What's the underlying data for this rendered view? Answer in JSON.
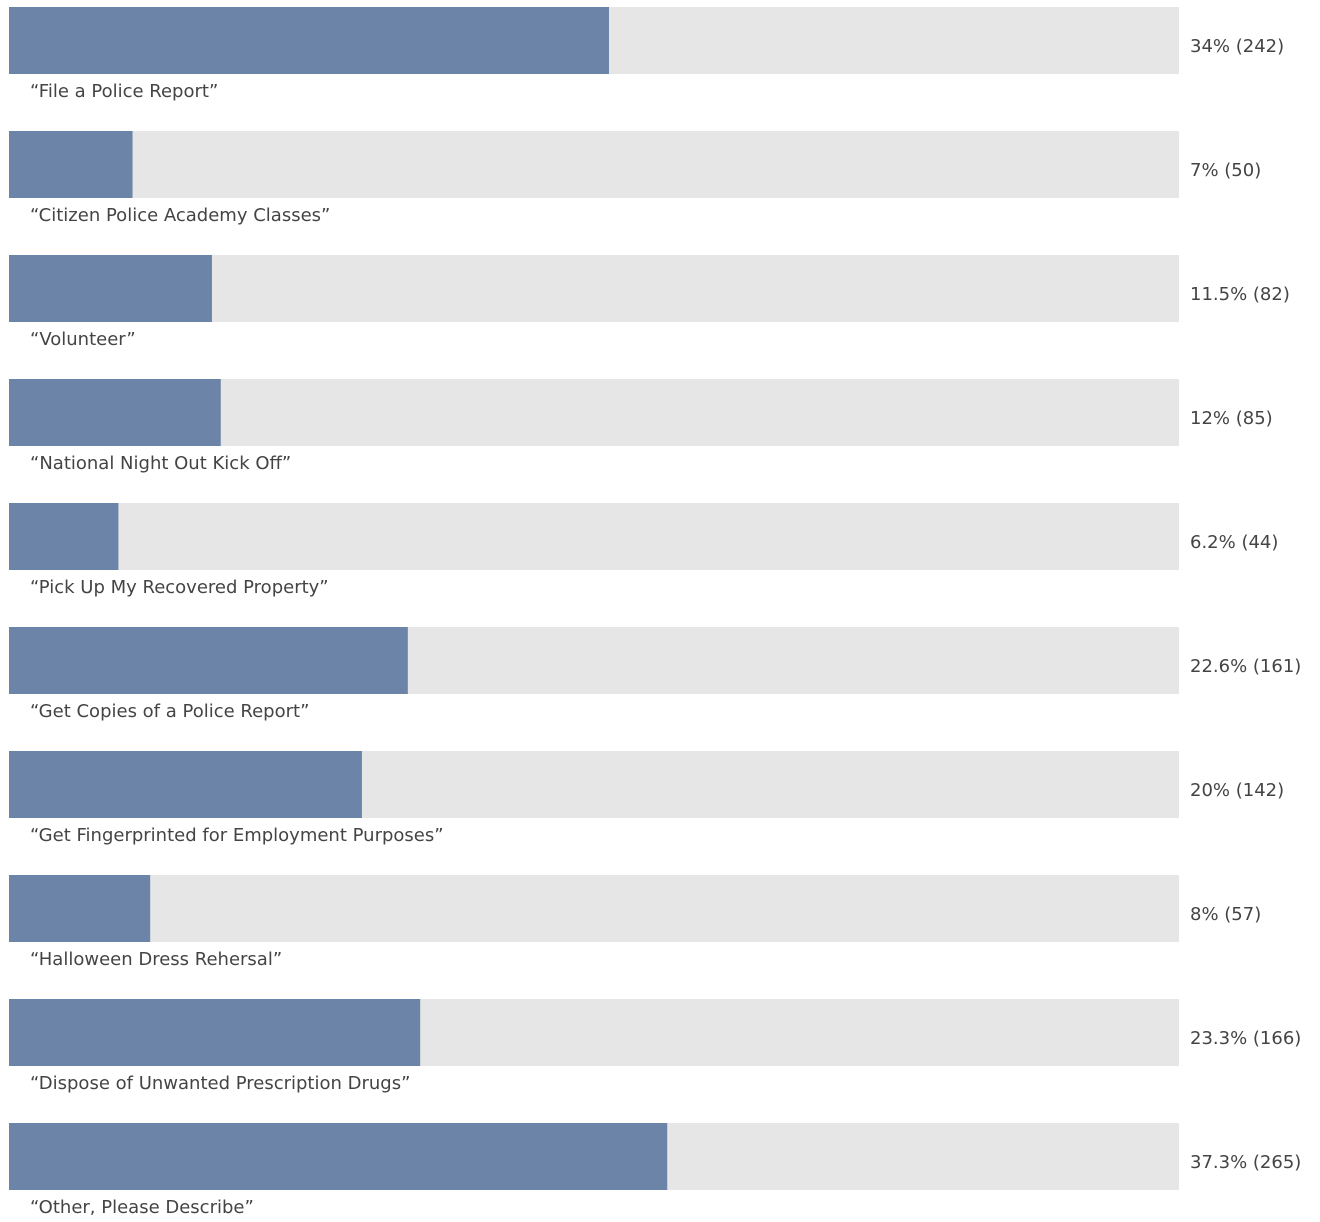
{
  "chart_data": {
    "type": "bar",
    "orientation": "horizontal",
    "categories": [
      "“File a Police Report”",
      "“Citizen Police Academy Classes”",
      "“Volunteer”",
      "“National Night Out Kick Off”",
      "“Pick Up My Recovered Property”",
      "“Get Copies of a Police Report”",
      "“Get Fingerprinted for Employment Purposes”",
      "“Halloween Dress Rehersal”",
      "“Dispose of Unwanted Prescription Drugs”",
      "“Other, Please Describe”"
    ],
    "values": [
      34,
      7,
      11.5,
      12,
      6.2,
      22.6,
      20,
      8,
      23.3,
      37.3
    ],
    "value_labels": [
      "34% (242)",
      "7% (50)",
      "11.5% (82)",
      "12% (85)",
      "6.2% (44)",
      "22.6% (161)",
      "20% (142)",
      "8% (57)",
      "23.3% (166)",
      "37.3% (265)"
    ],
    "color": "#6c84a8",
    "track_color": "#e6e6e6",
    "xlim": [
      0,
      66.3
    ]
  }
}
